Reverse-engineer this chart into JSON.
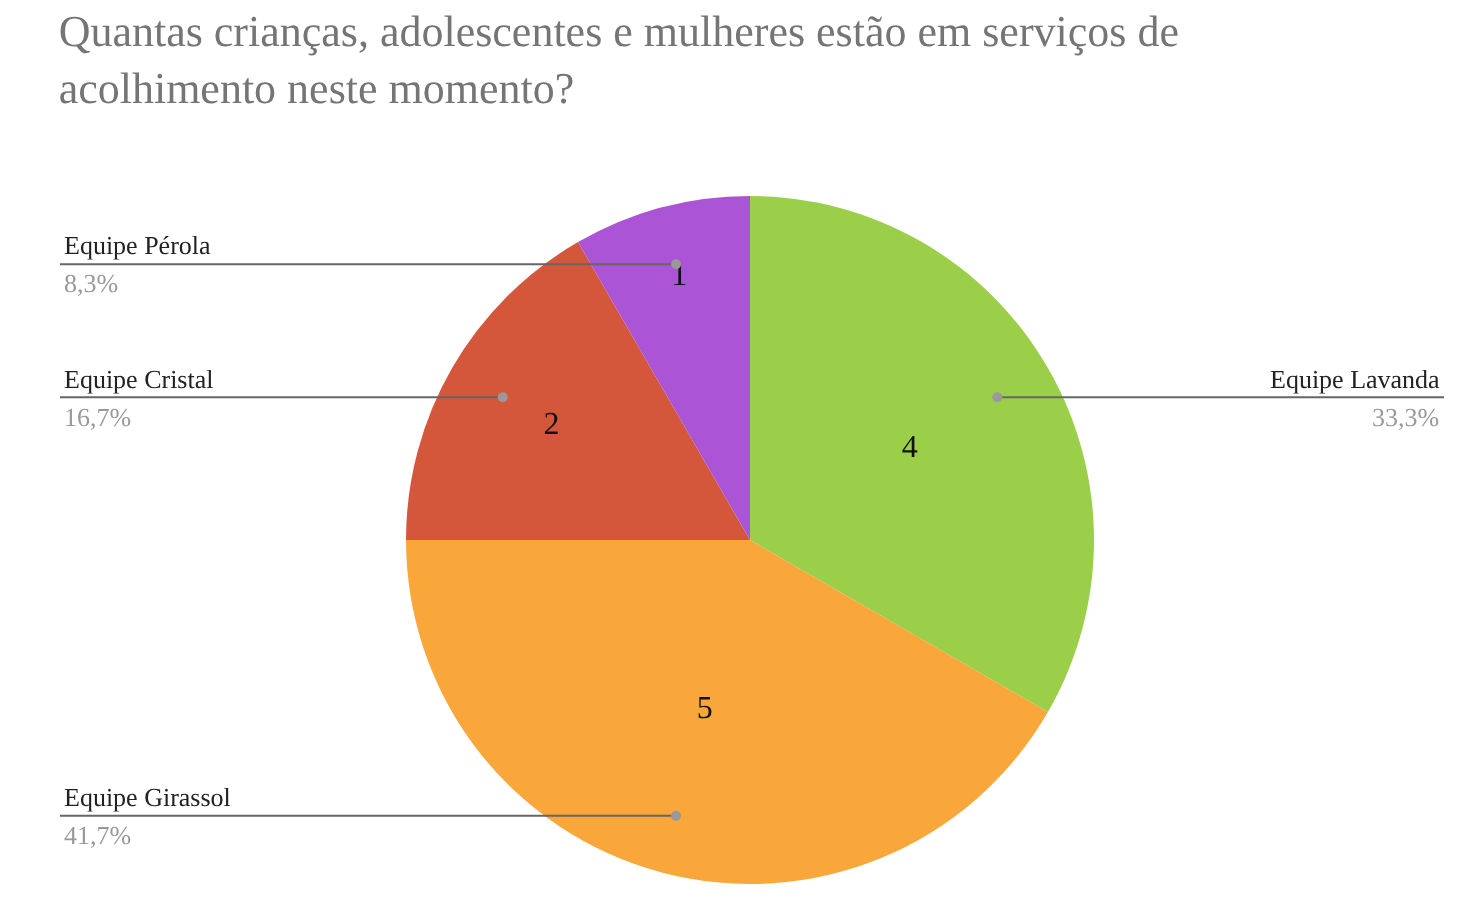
{
  "chart_data": {
    "type": "pie",
    "title": "Quantas crianças, adolescentes e mulheres estão em serviços de acolhimento neste momento?",
    "categories": [
      "Equipe Lavanda",
      "Equipe Girassol",
      "Equipe Cristal",
      "Equipe Pérola"
    ],
    "values": [
      4,
      5,
      2,
      1
    ],
    "colors": [
      "#9bcf4a",
      "#f9a63a",
      "#d4573c",
      "#ab54d6"
    ],
    "data_labels": true,
    "annotations": [
      {
        "text": "33,3%",
        "x": "Equipe Lavanda"
      },
      {
        "text": "41,7%",
        "x": "Equipe Girassol"
      },
      {
        "text": "16,7%",
        "x": "Equipe Cristal"
      },
      {
        "text": "8,3%",
        "x": "Equipe Pérola"
      }
    ],
    "legend": false
  }
}
